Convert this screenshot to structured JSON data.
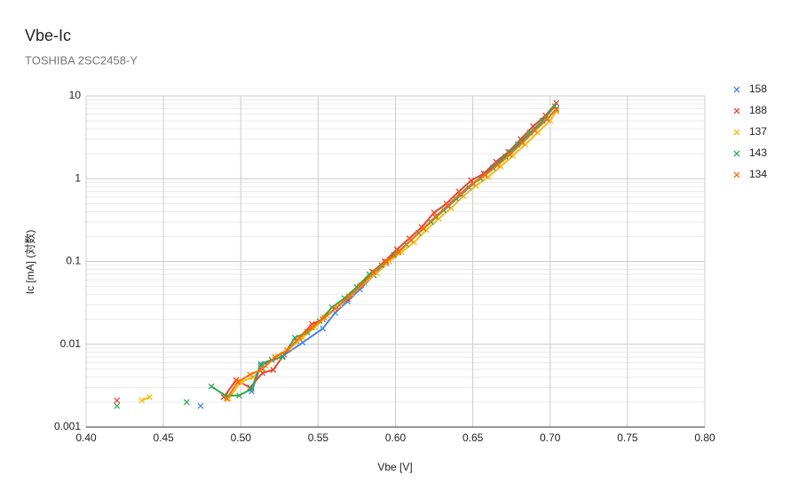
{
  "chart_data": {
    "type": "line",
    "title": "Vbe-Ic",
    "subtitle": "TOSHIBA 2SC2458-Y",
    "x_label": "Vbe [V]",
    "y_label": "Ic [mA] (対数)",
    "xlim": [
      0.4,
      0.8
    ],
    "xticks": [
      {
        "value": 0.4,
        "label": "0.40"
      },
      0.45,
      {
        "value": 0.5,
        "label": "0.50"
      },
      0.55,
      {
        "value": 0.6,
        "label": "0.60"
      },
      0.65,
      {
        "value": 0.7,
        "label": "0.70"
      },
      0.75,
      {
        "value": 0.8,
        "label": "0.80"
      }
    ],
    "ylim": [
      0.001,
      10
    ],
    "yticks": [
      0.001,
      0.01,
      0.1,
      1,
      10
    ],
    "log_y": true,
    "grid": true,
    "minor_grid": true,
    "legend": "right",
    "markers": "x",
    "series": [
      {
        "name": "158",
        "color": "#4285f4",
        "x": [
          0.474,
          null,
          0.507,
          0.513,
          0.527,
          0.54,
          0.553,
          0.561,
          0.569,
          0.577,
          0.586,
          0.594,
          0.602,
          0.61,
          0.618,
          0.626,
          0.634,
          0.642,
          0.65,
          0.658,
          0.666,
          0.674,
          0.682,
          0.69,
          0.698,
          0.704
        ],
        "values": [
          0.0018,
          null,
          0.0027,
          0.0055,
          0.0072,
          0.0105,
          0.0155,
          0.024,
          0.033,
          0.046,
          0.068,
          0.095,
          0.13,
          0.18,
          0.25,
          0.34,
          0.46,
          0.63,
          0.86,
          1.15,
          1.55,
          2.1,
          2.8,
          3.8,
          5.2,
          7.0
        ]
      },
      {
        "name": "188",
        "color": "#ea4335",
        "x": [
          0.42,
          null,
          0.489,
          0.497,
          0.506,
          0.514,
          0.521,
          0.528,
          0.536,
          0.546,
          0.553,
          0.561,
          0.569,
          0.577,
          0.585,
          0.593,
          0.601,
          0.609,
          0.617,
          0.625,
          0.633,
          0.641,
          0.649,
          0.657,
          0.665,
          0.673,
          0.681,
          0.689,
          0.697,
          0.704
        ],
        "values": [
          0.0021,
          null,
          0.0023,
          0.0037,
          0.003,
          0.0045,
          0.0049,
          0.0075,
          0.011,
          0.0175,
          0.02,
          0.027,
          0.035,
          0.05,
          0.075,
          0.1,
          0.14,
          0.19,
          0.26,
          0.39,
          0.5,
          0.7,
          0.95,
          1.15,
          1.6,
          2.1,
          3.0,
          4.3,
          5.8,
          8.2
        ]
      },
      {
        "name": "137",
        "color": "#fbbc04",
        "x": [
          0.436,
          0.441,
          null,
          0.492,
          0.5,
          0.508,
          0.516,
          0.524,
          0.532,
          0.54,
          0.548,
          0.556,
          0.564,
          0.572,
          0.58,
          0.588,
          0.596,
          0.604,
          0.612,
          0.62,
          0.628,
          0.636,
          0.644,
          0.652,
          0.66,
          0.668,
          0.676,
          0.684,
          0.692,
          0.7,
          0.704
        ],
        "values": [
          0.0021,
          0.0023,
          null,
          0.0022,
          0.0035,
          0.004,
          0.0055,
          0.0072,
          0.009,
          0.012,
          0.016,
          0.022,
          0.03,
          0.04,
          0.055,
          0.072,
          0.1,
          0.13,
          0.17,
          0.24,
          0.33,
          0.44,
          0.62,
          0.82,
          1.05,
          1.4,
          1.9,
          2.6,
          3.6,
          5.0,
          6.5
        ]
      },
      {
        "name": "143",
        "color": "#34a853",
        "x": [
          0.42,
          null,
          0.465,
          null,
          0.481,
          0.49,
          0.499,
          0.507,
          0.513,
          0.52,
          0.527,
          0.535,
          0.543,
          0.551,
          0.559,
          0.567,
          0.575,
          0.583,
          0.591,
          0.599,
          0.607,
          0.615,
          0.623,
          0.631,
          0.639,
          0.647,
          0.655,
          0.663,
          0.671,
          0.679,
          0.687,
          0.695,
          0.703
        ],
        "values": [
          0.0018,
          null,
          0.002,
          null,
          0.0031,
          0.0024,
          0.0024,
          0.0029,
          0.0058,
          0.0065,
          0.007,
          0.012,
          0.014,
          0.019,
          0.028,
          0.036,
          0.049,
          0.07,
          0.09,
          0.12,
          0.16,
          0.22,
          0.3,
          0.42,
          0.58,
          0.8,
          1.0,
          1.35,
          1.85,
          2.6,
          3.6,
          5.0,
          7.5
        ]
      },
      {
        "name": "134",
        "color": "#ff6d01",
        "x": [
          0.491,
          0.498,
          0.506,
          0.514,
          0.522,
          0.53,
          0.538,
          0.546,
          0.554,
          0.562,
          0.57,
          0.578,
          0.586,
          0.594,
          0.602,
          0.61,
          0.618,
          0.626,
          0.634,
          0.642,
          0.65,
          0.658,
          0.666,
          0.674,
          0.682,
          0.69,
          0.698,
          0.704
        ],
        "values": [
          0.0022,
          0.0035,
          0.0043,
          0.005,
          0.007,
          0.0085,
          0.012,
          0.016,
          0.021,
          0.028,
          0.038,
          0.052,
          0.074,
          0.1,
          0.13,
          0.18,
          0.25,
          0.35,
          0.48,
          0.66,
          0.88,
          1.1,
          1.45,
          1.95,
          2.7,
          3.8,
          5.3,
          6.8
        ]
      }
    ]
  }
}
